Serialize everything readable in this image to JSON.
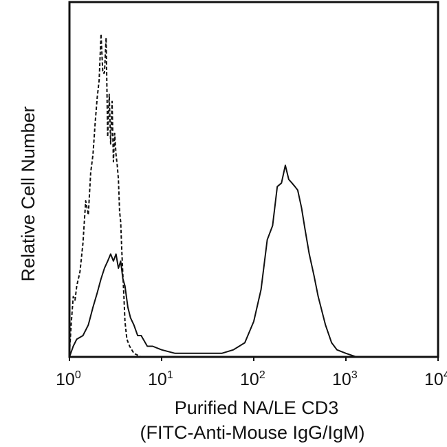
{
  "chart_data": {
    "type": "line",
    "title": "",
    "xlabel_lines": [
      "Purified NA/LE CD3",
      "(FITC-Anti-Mouse IgG/IgM)"
    ],
    "ylabel": "Relative Cell Number",
    "x_scale": "log",
    "xlim": [
      1,
      10000
    ],
    "ylim": [
      0,
      100
    ],
    "grid": false,
    "legend": "none",
    "x_ticks": [
      {
        "base": "10",
        "exp": "0",
        "value": 1
      },
      {
        "base": "10",
        "exp": "1",
        "value": 10
      },
      {
        "base": "10",
        "exp": "2",
        "value": 100
      },
      {
        "base": "10",
        "exp": "3",
        "value": 1000
      },
      {
        "base": "10",
        "exp": "4",
        "value": 10000
      }
    ],
    "series": [
      {
        "style": "dashed",
        "color": "#111111",
        "x": [
          1.0,
          1.05,
          1.1,
          1.15,
          1.2,
          1.3,
          1.4,
          1.5,
          1.6,
          1.7,
          1.8,
          1.9,
          2.0,
          2.1,
          2.2,
          2.3,
          2.4,
          2.5,
          2.6,
          2.7,
          2.8,
          2.9,
          3.0,
          3.1,
          3.2,
          3.3,
          3.4,
          3.5,
          3.6,
          3.7,
          3.8,
          3.9,
          4.0,
          4.2,
          4.5,
          5.0,
          6.0
        ],
        "y": [
          1,
          10,
          17,
          16,
          20,
          24,
          32,
          44,
          40,
          52,
          57,
          66,
          73,
          78,
          91,
          80,
          80,
          90,
          62,
          74,
          60,
          72,
          55,
          63,
          57,
          54,
          50,
          41,
          38,
          30,
          23,
          17,
          10,
          5,
          3,
          1,
          0
        ]
      },
      {
        "style": "solid",
        "color": "#111111",
        "x": [
          1.0,
          1.1,
          1.2,
          1.4,
          1.6,
          1.8,
          2.0,
          2.2,
          2.4,
          2.6,
          2.8,
          3.0,
          3.2,
          3.4,
          3.6,
          3.8,
          4.0,
          4.3,
          4.6,
          5.0,
          5.5,
          6.0,
          7.0,
          8.0,
          10,
          14,
          20,
          30,
          45,
          60,
          80,
          100,
          120,
          140,
          160,
          180,
          200,
          220,
          240,
          260,
          280,
          300,
          330,
          360,
          400,
          450,
          500,
          600,
          700,
          800,
          1000,
          1300
        ],
        "y": [
          0,
          3,
          5,
          6,
          9,
          14,
          18,
          22,
          25,
          27,
          29,
          27,
          29,
          25,
          27,
          22,
          20,
          14,
          11,
          9,
          6,
          6,
          3,
          3,
          2,
          1,
          1,
          1,
          1,
          2,
          4,
          10,
          19,
          33,
          37,
          48,
          49,
          54,
          50,
          49,
          48,
          47,
          42,
          36,
          29,
          23,
          17,
          9,
          4,
          2,
          1,
          0
        ]
      }
    ]
  }
}
